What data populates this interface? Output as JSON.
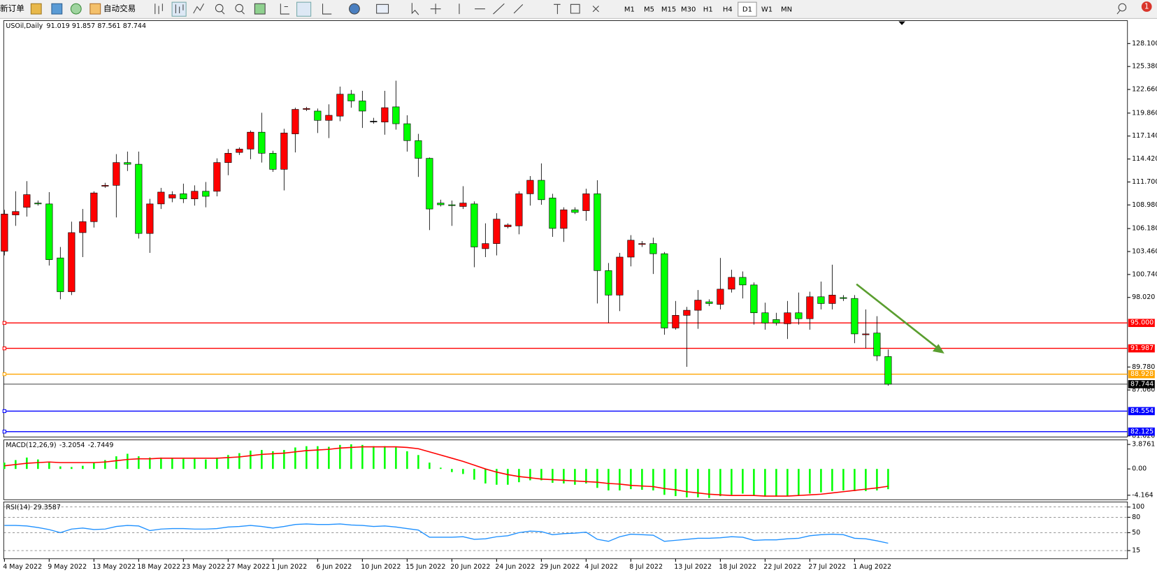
{
  "toolbar": {
    "new_order": "新订单",
    "auto_trading": "自动交易",
    "timeframes": [
      "M1",
      "M5",
      "M15",
      "M30",
      "H1",
      "H4",
      "D1",
      "W1",
      "MN"
    ],
    "active_timeframe": "D1",
    "notifications": "1"
  },
  "chart_data": {
    "type": "candlestick",
    "symbol": "USOil,Daily",
    "categories": [
      "4 May 2022",
      null,
      null,
      null,
      "9 May 2022",
      null,
      null,
      null,
      "13 May 2022",
      null,
      null,
      null,
      "18 May 2022",
      null,
      null,
      null,
      "23 May 2022",
      null,
      null,
      null,
      "27 May 2022",
      null,
      null,
      null,
      "1 Jun 2022",
      null,
      null,
      null,
      "6 Jun 2022",
      null,
      null,
      null,
      "10 Jun 2022",
      null,
      null,
      null,
      "15 Jun 2022",
      null,
      null,
      null,
      "20 Jun 2022",
      null,
      null,
      null,
      "24 Jun 2022",
      null,
      null,
      null,
      "29 Jun 2022",
      null,
      null,
      null,
      "4 Jul 2022",
      null,
      null,
      null,
      "8 Jul 2022",
      null,
      null,
      null,
      "13 Jul 2022",
      null,
      null,
      null,
      "18 Jul 2022",
      null,
      null,
      null,
      "22 Jul 2022",
      null,
      null,
      null,
      "27 Jul 2022",
      null,
      null,
      null,
      "1 Aug 2022",
      null,
      null,
      null
    ],
    "open": [
      103.5,
      107.8,
      108.7,
      109.2,
      109.1,
      102.7,
      98.7,
      105.7,
      107.0,
      111.2,
      111.3,
      114.0,
      113.8,
      105.6,
      109.1,
      109.8,
      110.3,
      109.7,
      110.6,
      110.6,
      114.0,
      115.2,
      115.6,
      117.6,
      115.1,
      113.2,
      117.4,
      120.3,
      120.1,
      119.0,
      119.5,
      122.1,
      121.3,
      118.9,
      118.8,
      120.6,
      118.6,
      116.6,
      114.5,
      109.2,
      109.0,
      108.8,
      109.1,
      103.8,
      104.4,
      106.4,
      106.5,
      110.3,
      111.9,
      109.8,
      106.2,
      108.4,
      108.3,
      110.3,
      101.2,
      98.3,
      102.8,
      104.3,
      104.4,
      103.2,
      94.4,
      95.9,
      96.5,
      97.5,
      97.2,
      99.0,
      100.4,
      99.5,
      96.2,
      95.4,
      94.9,
      96.2,
      95.5,
      98.1,
      97.3,
      98.0,
      97.9,
      93.6,
      93.8,
      91.019
    ],
    "high": [
      108.4,
      110.6,
      111.8,
      109.5,
      110.5,
      104.0,
      107.0,
      108.5,
      110.6,
      111.6,
      115.0,
      115.3,
      115.3,
      109.7,
      111.0,
      110.6,
      111.5,
      111.3,
      111.7,
      114.5,
      115.6,
      115.8,
      117.8,
      119.9,
      115.4,
      118.0,
      120.5,
      120.6,
      120.4,
      120.9,
      123.0,
      122.6,
      122.5,
      119.3,
      122.5,
      123.7,
      119.6,
      117.4,
      114.6,
      109.6,
      109.5,
      111.2,
      109.4,
      106.8,
      108.0,
      106.8,
      110.6,
      112.4,
      113.9,
      110.3,
      108.7,
      108.7,
      110.9,
      111.9,
      102.1,
      103.3,
      105.4,
      104.7,
      105.1,
      103.4,
      97.6,
      96.9,
      98.9,
      97.8,
      102.7,
      101.3,
      101.1,
      99.8,
      97.4,
      96.2,
      97.6,
      98.6,
      98.7,
      99.9,
      101.9,
      98.3,
      98.3,
      96.6,
      95.8,
      91.857
    ],
    "low": [
      103.0,
      106.5,
      107.6,
      108.9,
      101.8,
      97.8,
      98.3,
      102.8,
      106.3,
      111.0,
      107.5,
      113.0,
      105.0,
      103.3,
      108.5,
      109.3,
      109.2,
      108.9,
      108.7,
      110.0,
      112.5,
      114.9,
      114.4,
      114.0,
      112.9,
      110.7,
      115.2,
      120.1,
      117.5,
      116.9,
      118.9,
      120.5,
      118.1,
      118.6,
      117.3,
      117.9,
      115.3,
      112.3,
      106.0,
      108.8,
      106.5,
      108.5,
      101.6,
      102.8,
      103.0,
      106.2,
      105.5,
      108.9,
      109.0,
      105.2,
      104.6,
      107.9,
      107.1,
      97.3,
      95.0,
      96.4,
      101.7,
      104.0,
      100.8,
      93.6,
      94.2,
      89.8,
      94.3,
      97.0,
      96.6,
      98.6,
      97.9,
      94.8,
      94.2,
      94.7,
      93.1,
      94.8,
      94.2,
      96.6,
      96.6,
      97.6,
      92.6,
      92.0,
      90.5,
      87.561
    ],
    "close": [
      107.9,
      108.2,
      110.2,
      109.1,
      102.5,
      98.7,
      105.7,
      107.0,
      110.4,
      111.3,
      114.0,
      113.8,
      105.6,
      109.1,
      110.5,
      110.2,
      109.7,
      110.6,
      110.0,
      114.0,
      115.1,
      115.6,
      117.6,
      115.1,
      113.2,
      117.5,
      120.3,
      120.4,
      119.0,
      119.6,
      122.1,
      121.3,
      120.1,
      118.9,
      120.5,
      118.6,
      116.6,
      114.5,
      108.5,
      109.0,
      108.9,
      109.2,
      104.0,
      104.4,
      107.3,
      106.6,
      110.3,
      111.9,
      109.6,
      106.2,
      108.4,
      108.1,
      110.3,
      101.2,
      98.3,
      102.8,
      104.8,
      104.4,
      103.2,
      94.4,
      95.9,
      96.5,
      97.7,
      97.3,
      99.0,
      100.4,
      99.5,
      96.2,
      95.0,
      95.0,
      96.2,
      95.5,
      98.1,
      97.3,
      98.3,
      97.9,
      93.7,
      93.7,
      91.1,
      87.744
    ],
    "colors": {
      "up": "#ff0000",
      "down": "#00ff00",
      "flat": "#000000"
    },
    "ylim": [
      81.49,
      130.81
    ],
    "yticks": [
      {
        "value": 128.1,
        "label": "128.100"
      },
      {
        "value": 125.38,
        "label": "125.380"
      },
      {
        "value": 122.66,
        "label": "122.660"
      },
      {
        "value": 119.86,
        "label": "119.860"
      },
      {
        "value": 117.14,
        "label": "117.140"
      },
      {
        "value": 114.42,
        "label": "114.420"
      },
      {
        "value": 111.7,
        "label": "111.700"
      },
      {
        "value": 108.98,
        "label": "108.980"
      },
      {
        "value": 106.18,
        "label": "106.180"
      },
      {
        "value": 103.46,
        "label": "103.460"
      },
      {
        "value": 100.74,
        "label": "100.740"
      },
      {
        "value": 98.02,
        "label": "98.020"
      },
      {
        "value": 89.78,
        "label": "89.780"
      },
      {
        "value": 87.06,
        "label": "87.060"
      },
      {
        "value": 81.62,
        "label": "81.620"
      }
    ],
    "levels": [
      {
        "value": 95,
        "label": "95.000",
        "color": "#ff0000"
      },
      {
        "value": 91.987,
        "label": "91.987",
        "color": "#ff0000"
      },
      {
        "value": 88.928,
        "label": "88.928",
        "color": "#ffa500"
      },
      {
        "value": 84.554,
        "label": "84.554",
        "color": "#0000ff"
      },
      {
        "value": 82.125,
        "label": "82.125",
        "color": "#0000ff"
      }
    ],
    "macd": {
      "name": "MACD(12,26,9)",
      "ylim": [
        -4.87,
        4.59
      ],
      "yticks": [
        3.8761,
        {
          "value": 0,
          "label": "0.00"
        },
        -4.164
      ],
      "histogram": {
        "color": "#00ff00",
        "values": [
          1.0,
          1.4,
          1.8,
          1.5,
          1.0,
          0.4,
          0.3,
          0.5,
          1.0,
          1.4,
          2.0,
          2.4,
          2.0,
          1.8,
          1.8,
          1.7,
          1.6,
          1.6,
          1.5,
          1.8,
          2.2,
          2.5,
          2.9,
          3.0,
          2.8,
          3.0,
          3.4,
          3.6,
          3.6,
          3.5,
          3.8,
          3.9,
          3.8,
          3.6,
          3.6,
          3.4,
          2.8,
          2.2,
          1.0,
          0.2,
          -0.5,
          -0.8,
          -1.7,
          -2.3,
          -2.5,
          -2.5,
          -2.1,
          -1.8,
          -1.8,
          -2.2,
          -2.3,
          -2.5,
          -2.3,
          -3.0,
          -3.4,
          -3.4,
          -3.2,
          -3.3,
          -3.4,
          -4.1,
          -4.3,
          -4.5,
          -4.5,
          -4.6,
          -4.3,
          -4.1,
          -3.9,
          -4.2,
          -4.4,
          -4.4,
          -4.3,
          -4.2,
          -3.9,
          -3.7,
          -3.5,
          -3.4,
          -3.5,
          -3.5,
          -3.4,
          -3.2054
        ]
      },
      "signal": {
        "color": "#ff0000",
        "values": [
          0.5,
          0.7,
          0.9,
          1.0,
          1.1,
          1.0,
          1.0,
          1.0,
          1.0,
          1.1,
          1.3,
          1.5,
          1.6,
          1.6,
          1.7,
          1.7,
          1.7,
          1.7,
          1.7,
          1.7,
          1.8,
          1.9,
          2.1,
          2.3,
          2.4,
          2.5,
          2.7,
          2.9,
          3.0,
          3.1,
          3.3,
          3.4,
          3.5,
          3.5,
          3.5,
          3.5,
          3.4,
          3.2,
          2.7,
          2.2,
          1.7,
          1.2,
          0.6,
          0.0,
          -0.5,
          -0.9,
          -1.2,
          -1.4,
          -1.6,
          -1.7,
          -1.8,
          -1.9,
          -2.0,
          -2.1,
          -2.3,
          -2.4,
          -2.6,
          -2.7,
          -2.8,
          -3.1,
          -3.3,
          -3.6,
          -3.8,
          -4.0,
          -4.1,
          -4.2,
          -4.2,
          -4.2,
          -4.3,
          -4.3,
          -4.3,
          -4.2,
          -4.1,
          -4.0,
          -3.8,
          -3.6,
          -3.4,
          -3.2,
          -3.0,
          -2.7449
        ]
      }
    },
    "rsi": {
      "name": "RSI(14)",
      "color": "#1e90ff",
      "ylim": [
        -1,
        110
      ],
      "yticks": [
        100,
        80,
        50,
        15
      ],
      "values": [
        64,
        64,
        63,
        60,
        56,
        50,
        57,
        59,
        56,
        57,
        62,
        64,
        63,
        54,
        57,
        58,
        58,
        57,
        57,
        58,
        61,
        62,
        64,
        62,
        59,
        62,
        66,
        67,
        66,
        66,
        67,
        65,
        64,
        62,
        63,
        61,
        58,
        55,
        41,
        41,
        41,
        42,
        37,
        38,
        42,
        44,
        50,
        53,
        52,
        46,
        48,
        49,
        51,
        37,
        33,
        42,
        47,
        46,
        45,
        33,
        35,
        37,
        39,
        39,
        40,
        42,
        41,
        35,
        36,
        36,
        38,
        39,
        44,
        46,
        47,
        46,
        39,
        38,
        34,
        29.3587
      ]
    }
  }
}
